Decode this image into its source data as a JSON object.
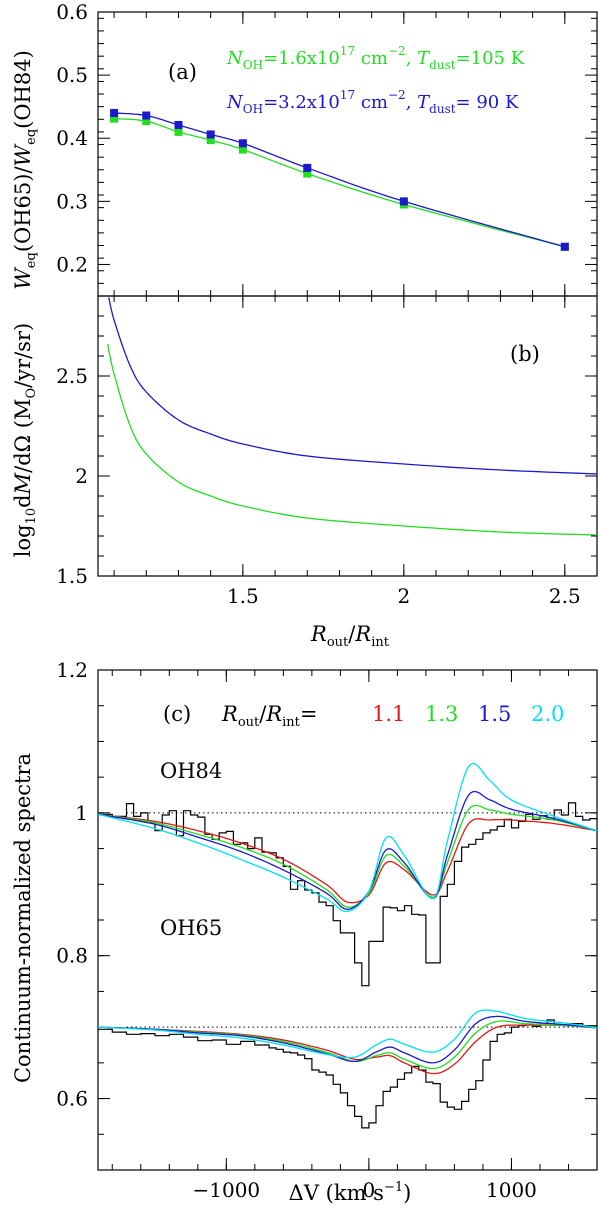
{
  "chart_data": [
    {
      "type": "line",
      "panel": "(a)",
      "ylabel": "W_eq(OH65)/W_eq(OH84)",
      "ylabel_parts": {
        "w1": "W",
        "sub1": "eq",
        "mid": "(OH65)/",
        "w2": "W",
        "sub2": "eq",
        "end": "(OH84)"
      },
      "xlim": [
        1.05,
        2.6
      ],
      "ylim": [
        0.15,
        0.6
      ],
      "yticks": [
        "0.2",
        "0.3",
        "0.4",
        "0.5",
        "0.6"
      ],
      "legend": [
        {
          "n_sym": "N",
          "n_sub": "OH",
          "eq1": "=1.6x10",
          "exp": "17",
          "unit": " cm",
          "unit_exp": "−2",
          "sep": ", ",
          "t_sym": "T",
          "t_sub": "dust",
          "eq2": "=105 K",
          "color": "#22dd22"
        },
        {
          "n_sym": "N",
          "n_sub": "OH",
          "eq1": "=3.2x10",
          "exp": "17",
          "unit": " cm",
          "unit_exp": "−2",
          "sep": ", ",
          "t_sym": "T",
          "t_sub": "dust",
          "eq2": "= 90 K",
          "color": "#1a1acc"
        }
      ],
      "series": [
        {
          "name": "N_OH=1.6x10^17, T_dust=105 K",
          "color": "#22dd22",
          "x": [
            1.1,
            1.2,
            1.3,
            1.4,
            1.5,
            1.7,
            2.0,
            2.5
          ],
          "y": [
            0.431,
            0.427,
            0.41,
            0.397,
            0.382,
            0.344,
            0.295,
            0.228
          ]
        },
        {
          "name": "N_OH=3.2x10^17, T_dust=90 K",
          "color": "#1a1acc",
          "x": [
            1.1,
            1.2,
            1.3,
            1.4,
            1.5,
            1.7,
            2.0,
            2.5
          ],
          "y": [
            0.44,
            0.436,
            0.421,
            0.406,
            0.392,
            0.353,
            0.3,
            0.228
          ]
        }
      ]
    },
    {
      "type": "line",
      "panel": "(b)",
      "ylabel": "log10 dM/dΩ (M_O/yr/sr)",
      "ylabel_parts": {
        "log": "log",
        "sub": "10",
        "d1": "d",
        "m": "M",
        "d2": "/dΩ  (M",
        "msub": "O",
        "end": "/yr/sr)"
      },
      "xlabel_parts": {
        "r1": "R",
        "s1": "out",
        "mid": "/",
        "r2": "R",
        "s2": "int"
      },
      "xlabel": "R_out/R_int",
      "xlim": [
        1.05,
        2.6
      ],
      "ylim": [
        1.5,
        2.9
      ],
      "xticks": [
        "1.5",
        "2",
        "2.5"
      ],
      "yticks": [
        "1.5",
        "2",
        "2.5"
      ],
      "series": [
        {
          "name": "N_OH=1.6x10^17, T_dust=105 K",
          "color": "#22dd22",
          "x": [
            1.08,
            1.1,
            1.15,
            1.2,
            1.3,
            1.4,
            1.5,
            1.7,
            2.0,
            2.3,
            2.6
          ],
          "y": [
            2.66,
            2.51,
            2.25,
            2.11,
            1.97,
            1.9,
            1.85,
            1.79,
            1.75,
            1.72,
            1.705
          ]
        },
        {
          "name": "N_OH=3.2x10^17, T_dust=90 K",
          "color": "#1a1acc",
          "x": [
            1.08,
            1.1,
            1.15,
            1.2,
            1.3,
            1.4,
            1.5,
            1.7,
            2.0,
            2.3,
            2.6
          ],
          "y": [
            2.92,
            2.78,
            2.55,
            2.42,
            2.28,
            2.21,
            2.16,
            2.1,
            2.06,
            2.03,
            2.01
          ]
        }
      ]
    },
    {
      "type": "line",
      "panel": "(c)",
      "ylabel": "Continuum-normalized spectra",
      "xlabel": "ΔV (km s^-1)",
      "xlabel_parts": {
        "dv": "ΔV (km s",
        "exp": "−1",
        "end": ")"
      },
      "xlim": [
        -1900,
        1600
      ],
      "ylim": [
        0.5,
        1.2
      ],
      "xticks": [
        "−1000",
        "0",
        "1000"
      ],
      "yticks": [
        "0.6",
        "0.8",
        "1",
        "1.2"
      ],
      "legend_label_parts": {
        "r1": "R",
        "s1": "out",
        "mid": "/",
        "r2": "R",
        "s2": "int",
        "eq": "="
      },
      "legend": [
        {
          "label": "1.1",
          "color": "#e01818"
        },
        {
          "label": "1.3",
          "color": "#22dd22"
        },
        {
          "label": "1.5",
          "color": "#1a1acc"
        },
        {
          "label": "2.0",
          "color": "#00e0f0"
        }
      ],
      "line_labels": [
        {
          "text": "OH84"
        },
        {
          "text": "OH65"
        }
      ],
      "continuum_levels": [
        1.0,
        0.7
      ],
      "observed": {
        "OH84": {
          "x": [
            -1900,
            -1800,
            -1700,
            -1650,
            -1600,
            -1550,
            -1500,
            -1450,
            -1400,
            -1350,
            -1300,
            -1250,
            -1200,
            -1150,
            -1100,
            -1050,
            -1000,
            -950,
            -900,
            -850,
            -800,
            -750,
            -700,
            -650,
            -600,
            -550,
            -500,
            -450,
            -400,
            -350,
            -300,
            -250,
            -200,
            -150,
            -100,
            -50,
            0,
            50,
            100,
            150,
            200,
            250,
            300,
            350,
            400,
            450,
            500,
            550,
            600,
            650,
            700,
            750,
            800,
            850,
            900,
            950,
            1000,
            1050,
            1100,
            1150,
            1200,
            1250,
            1300,
            1350,
            1400,
            1450,
            1500,
            1550,
            1600
          ],
          "y": [
            0.998,
            0.995,
            1.013,
            0.995,
            1.0,
            0.986,
            0.975,
            0.997,
            1.003,
            0.968,
            1.003,
            0.997,
            0.994,
            0.97,
            0.963,
            0.972,
            0.974,
            0.956,
            0.958,
            0.95,
            0.965,
            0.945,
            0.944,
            0.937,
            0.925,
            0.893,
            0.905,
            0.892,
            0.888,
            0.875,
            0.87,
            0.849,
            0.832,
            0.832,
            0.79,
            0.758,
            0.82,
            0.82,
            0.868,
            0.867,
            0.863,
            0.87,
            0.858,
            0.857,
            0.79,
            0.79,
            0.883,
            0.9,
            0.932,
            0.952,
            0.956,
            0.963,
            0.972,
            0.976,
            0.981,
            0.991,
            0.979,
            0.988,
            0.998,
            0.991,
            0.996,
            0.991,
            1.004,
            0.997,
            1.014,
            0.995,
            0.99,
            0.992,
            0.99
          ]
        },
        "OH65": {
          "x": [
            -1900,
            -1800,
            -1700,
            -1600,
            -1500,
            -1400,
            -1300,
            -1200,
            -1100,
            -1000,
            -900,
            -800,
            -700,
            -650,
            -600,
            -550,
            -500,
            -450,
            -400,
            -350,
            -300,
            -250,
            -200,
            -150,
            -100,
            -50,
            0,
            50,
            100,
            150,
            200,
            250,
            300,
            350,
            400,
            450,
            500,
            550,
            600,
            650,
            700,
            750,
            800,
            850,
            900,
            950,
            1000,
            1050,
            1100,
            1150,
            1200,
            1250,
            1300,
            1400,
            1500,
            1600
          ],
          "y": [
            0.697,
            0.693,
            0.69,
            0.691,
            0.688,
            0.69,
            0.686,
            0.681,
            0.682,
            0.676,
            0.68,
            0.675,
            0.671,
            0.669,
            0.665,
            0.664,
            0.661,
            0.656,
            0.64,
            0.637,
            0.633,
            0.62,
            0.608,
            0.59,
            0.575,
            0.559,
            0.566,
            0.59,
            0.61,
            0.616,
            0.627,
            0.636,
            0.645,
            0.64,
            0.623,
            0.621,
            0.595,
            0.588,
            0.585,
            0.596,
            0.613,
            0.625,
            0.654,
            0.68,
            0.69,
            0.692,
            0.7,
            0.702,
            0.703,
            0.701,
            0.704,
            0.71,
            0.703,
            0.705,
            0.702,
            0.701
          ]
        }
      },
      "models": [
        {
          "label": "1.1",
          "color": "#e01818",
          "oh84_x": [
            -1900,
            -1500,
            -1200,
            -900,
            -600,
            -300,
            -150,
            0,
            120,
            250,
            450,
            550,
            700,
            850,
            1000,
            1300,
            1600
          ],
          "oh84_y": [
            0.998,
            0.988,
            0.975,
            0.958,
            0.935,
            0.9,
            0.875,
            0.885,
            0.93,
            0.92,
            0.885,
            0.918,
            0.985,
            0.99,
            0.99,
            0.985,
            0.975
          ],
          "oh65_x": [
            -1900,
            -1500,
            -1200,
            -900,
            -600,
            -300,
            -100,
            50,
            150,
            250,
            450,
            600,
            750,
            900,
            1100,
            1400,
            1600
          ],
          "oh65_y": [
            0.7,
            0.697,
            0.694,
            0.69,
            0.682,
            0.668,
            0.655,
            0.658,
            0.66,
            0.65,
            0.635,
            0.648,
            0.68,
            0.7,
            0.703,
            0.702,
            0.699
          ]
        },
        {
          "label": "1.3",
          "color": "#22dd22",
          "oh84_x": [
            -1900,
            -1500,
            -1200,
            -900,
            -600,
            -300,
            -150,
            0,
            120,
            250,
            450,
            550,
            700,
            850,
            1000,
            1300,
            1600
          ],
          "oh84_y": [
            0.998,
            0.986,
            0.97,
            0.952,
            0.928,
            0.893,
            0.868,
            0.887,
            0.94,
            0.925,
            0.882,
            0.93,
            1.005,
            1.004,
            0.998,
            0.99,
            0.975
          ],
          "oh65_x": [
            -1900,
            -1500,
            -1200,
            -900,
            -600,
            -300,
            -100,
            50,
            150,
            250,
            450,
            600,
            750,
            900,
            1100,
            1400,
            1600
          ],
          "oh65_y": [
            0.7,
            0.697,
            0.693,
            0.689,
            0.68,
            0.665,
            0.652,
            0.66,
            0.664,
            0.655,
            0.642,
            0.658,
            0.692,
            0.708,
            0.705,
            0.702,
            0.699
          ]
        },
        {
          "label": "1.5",
          "color": "#1a1acc",
          "oh84_x": [
            -1900,
            -1500,
            -1200,
            -900,
            -600,
            -300,
            -150,
            0,
            120,
            250,
            450,
            550,
            700,
            850,
            1000,
            1300,
            1600
          ],
          "oh84_y": [
            0.998,
            0.984,
            0.966,
            0.946,
            0.92,
            0.888,
            0.865,
            0.89,
            0.948,
            0.93,
            0.88,
            0.94,
            1.025,
            1.018,
            1.005,
            0.992,
            0.975
          ],
          "oh65_x": [
            -1900,
            -1500,
            -1200,
            -900,
            -600,
            -300,
            -100,
            50,
            150,
            250,
            450,
            600,
            750,
            900,
            1100,
            1400,
            1600
          ],
          "oh65_y": [
            0.7,
            0.697,
            0.692,
            0.688,
            0.678,
            0.663,
            0.652,
            0.665,
            0.672,
            0.664,
            0.65,
            0.668,
            0.705,
            0.715,
            0.708,
            0.703,
            0.699
          ]
        },
        {
          "label": "2.0",
          "color": "#00e0f0",
          "oh84_x": [
            -1900,
            -1500,
            -1200,
            -900,
            -600,
            -300,
            -150,
            0,
            120,
            250,
            450,
            550,
            700,
            850,
            1000,
            1300,
            1600
          ],
          "oh84_y": [
            0.998,
            0.978,
            0.958,
            0.935,
            0.91,
            0.88,
            0.862,
            0.89,
            0.965,
            0.94,
            0.88,
            0.96,
            1.065,
            1.045,
            1.018,
            0.995,
            0.975
          ],
          "oh65_x": [
            -1900,
            -1500,
            -1200,
            -900,
            -600,
            -300,
            -100,
            50,
            150,
            250,
            450,
            600,
            750,
            900,
            1100,
            1400,
            1600
          ],
          "oh65_y": [
            0.7,
            0.696,
            0.69,
            0.685,
            0.675,
            0.662,
            0.658,
            0.675,
            0.683,
            0.676,
            0.665,
            0.683,
            0.72,
            0.722,
            0.712,
            0.705,
            0.699
          ]
        }
      ]
    }
  ]
}
